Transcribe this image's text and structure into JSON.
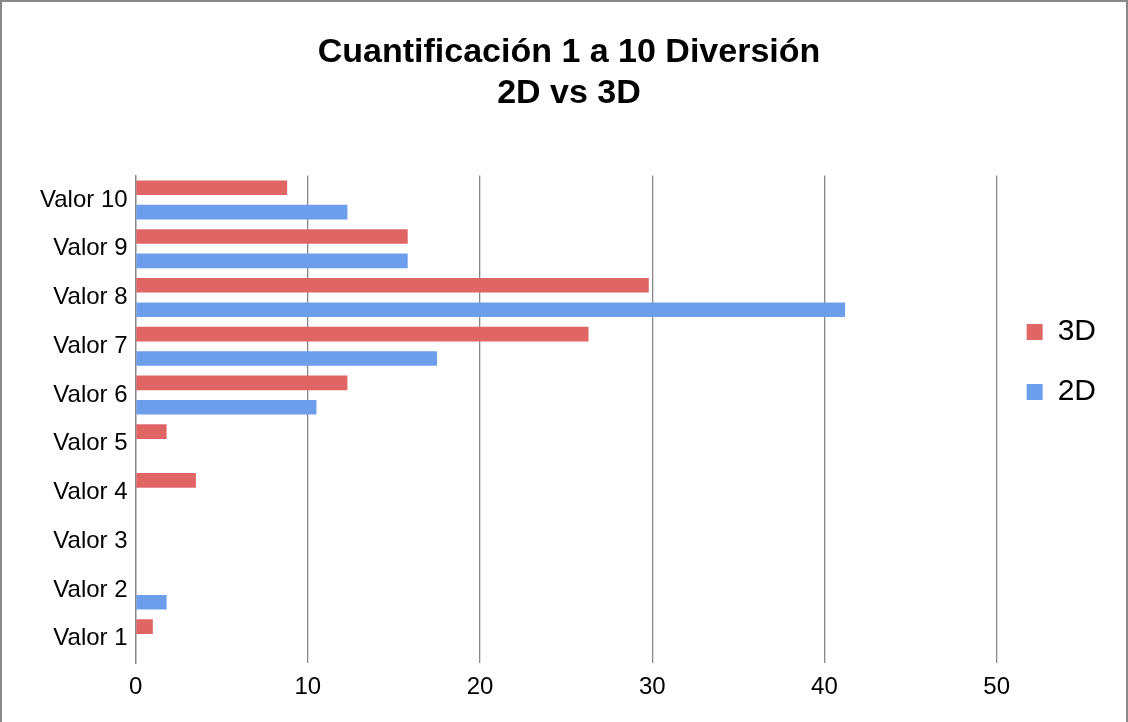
{
  "chart_data": {
    "type": "bar",
    "orientation": "horizontal",
    "title": [
      "Cuantificación 1 a 10 Diversión",
      "2D vs 3D"
    ],
    "categories": [
      "Valor 10",
      "Valor 9",
      "Valor 8",
      "Valor 7",
      "Valor 6",
      "Valor 5",
      "Valor 4",
      "Valor 3",
      "Valor 2",
      "Valor 1"
    ],
    "series": [
      {
        "name": "3D",
        "color": "#e06666",
        "values": [
          8.8,
          15.8,
          29.8,
          26.3,
          12.3,
          1.8,
          3.5,
          0,
          0,
          1.0
        ]
      },
      {
        "name": "2D",
        "color": "#6d9eeb",
        "values": [
          12.3,
          15.8,
          41.2,
          17.5,
          10.5,
          0,
          0,
          0,
          1.8,
          0
        ]
      }
    ],
    "xlim": [
      0,
      50
    ],
    "xticks": [
      0,
      10,
      20,
      30,
      40,
      50
    ],
    "grid": "x",
    "legend": "right"
  }
}
